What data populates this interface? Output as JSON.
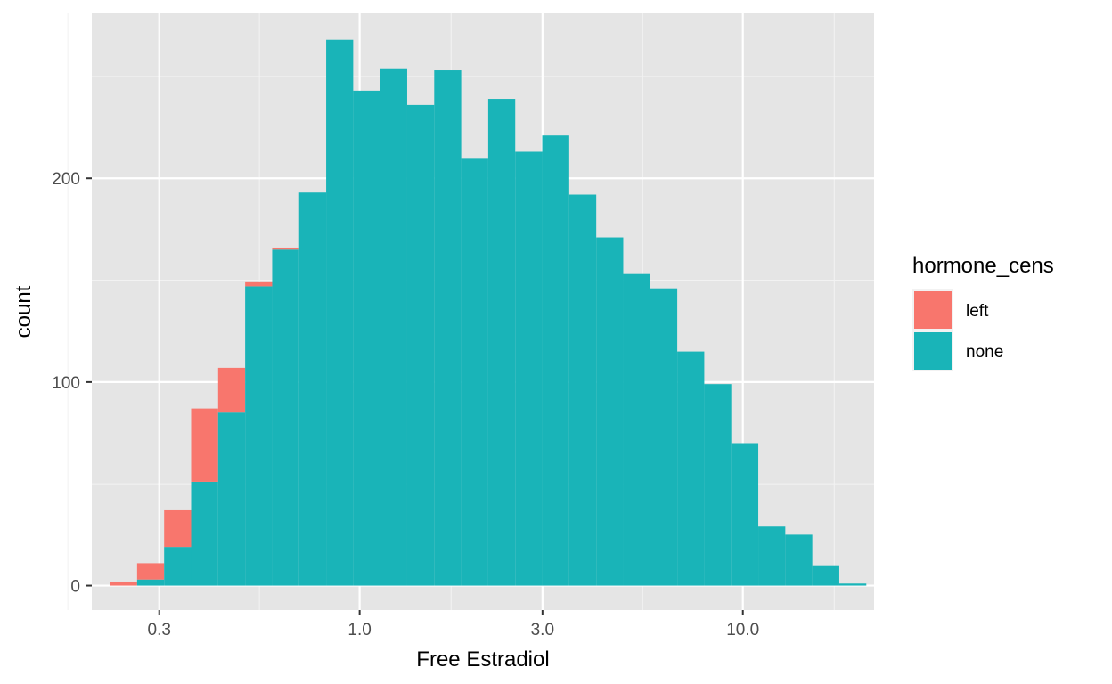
{
  "chart_data": {
    "type": "bar",
    "subtype": "stacked-histogram",
    "x_scale": "log10",
    "xlabel": "Free Estradiol",
    "ylabel": "count",
    "xlim": [
      0.2,
      22
    ],
    "ylim": [
      -12,
      281
    ],
    "grid": true,
    "x_ticks": [
      {
        "value": 0.3,
        "label": "0.3"
      },
      {
        "value": 1.0,
        "label": "1.0"
      },
      {
        "value": 3.0,
        "label": "3.0"
      },
      {
        "value": 10.0,
        "label": "10.0"
      }
    ],
    "x_minor_ticks": [
      0.1732,
      0.5477,
      1.7321,
      5.4772,
      17.3205
    ],
    "y_ticks": [
      {
        "value": 0,
        "label": "0"
      },
      {
        "value": 100,
        "label": "100"
      },
      {
        "value": 200,
        "label": "200"
      }
    ],
    "y_minor_ticks": [
      50,
      150,
      250
    ],
    "bins": [
      {
        "x": [
          0.2233,
          0.2626
        ],
        "left": 2,
        "none": 0
      },
      {
        "x": [
          0.2626,
          0.3089
        ],
        "left": 8,
        "none": 3
      },
      {
        "x": [
          0.3089,
          0.3633
        ],
        "left": 18,
        "none": 19
      },
      {
        "x": [
          0.3633,
          0.4273
        ],
        "left": 36,
        "none": 51
      },
      {
        "x": [
          0.4273,
          0.5026
        ],
        "left": 22,
        "none": 85
      },
      {
        "x": [
          0.5026,
          0.5912
        ],
        "left": 2,
        "none": 147
      },
      {
        "x": [
          0.5912,
          0.6953
        ],
        "left": 1,
        "none": 165
      },
      {
        "x": [
          0.6953,
          0.8178
        ],
        "left": 0,
        "none": 193
      },
      {
        "x": [
          0.8178,
          0.9619
        ],
        "left": 0,
        "none": 268
      },
      {
        "x": [
          0.9619,
          1.1313
        ],
        "left": 0,
        "none": 243
      },
      {
        "x": [
          1.1313,
          1.3306
        ],
        "left": 0,
        "none": 254
      },
      {
        "x": [
          1.3306,
          1.5651
        ],
        "left": 0,
        "none": 236
      },
      {
        "x": [
          1.5651,
          1.8408
        ],
        "left": 0,
        "none": 253
      },
      {
        "x": [
          1.8408,
          2.1651
        ],
        "left": 0,
        "none": 210
      },
      {
        "x": [
          2.1651,
          2.5466
        ],
        "left": 0,
        "none": 239
      },
      {
        "x": [
          2.5466,
          2.9953
        ],
        "left": 0,
        "none": 213
      },
      {
        "x": [
          2.9953,
          3.523
        ],
        "left": 0,
        "none": 221
      },
      {
        "x": [
          3.523,
          4.1438
        ],
        "left": 0,
        "none": 192
      },
      {
        "x": [
          4.1438,
          4.8738
        ],
        "left": 0,
        "none": 171
      },
      {
        "x": [
          4.8738,
          5.7325
        ],
        "left": 0,
        "none": 153
      },
      {
        "x": [
          5.7325,
          6.7425
        ],
        "left": 0,
        "none": 146
      },
      {
        "x": [
          6.7425,
          7.9304
        ],
        "left": 0,
        "none": 115
      },
      {
        "x": [
          7.9304,
          9.3276
        ],
        "left": 0,
        "none": 99
      },
      {
        "x": [
          9.3276,
          10.971
        ],
        "left": 0,
        "none": 70
      },
      {
        "x": [
          10.971,
          12.904
        ],
        "left": 0,
        "none": 29
      },
      {
        "x": [
          12.904,
          15.1774
        ],
        "left": 0,
        "none": 25
      },
      {
        "x": [
          15.1774,
          17.8515
        ],
        "left": 0,
        "none": 10
      },
      {
        "x": [
          17.8515,
          20.9967
        ],
        "left": 0,
        "none": 1
      },
      {
        "x": [
          20.9967,
          24.696
        ],
        "left": 0,
        "none": 0
      },
      {
        "x": [
          24.696,
          29.047
        ],
        "left": 0,
        "none": 1
      }
    ],
    "series": [
      {
        "name": "left",
        "color": "#F8766D"
      },
      {
        "name": "none",
        "color": "#19B4B8"
      }
    ],
    "legend": {
      "title": "hormone_cens",
      "position": "right"
    }
  }
}
